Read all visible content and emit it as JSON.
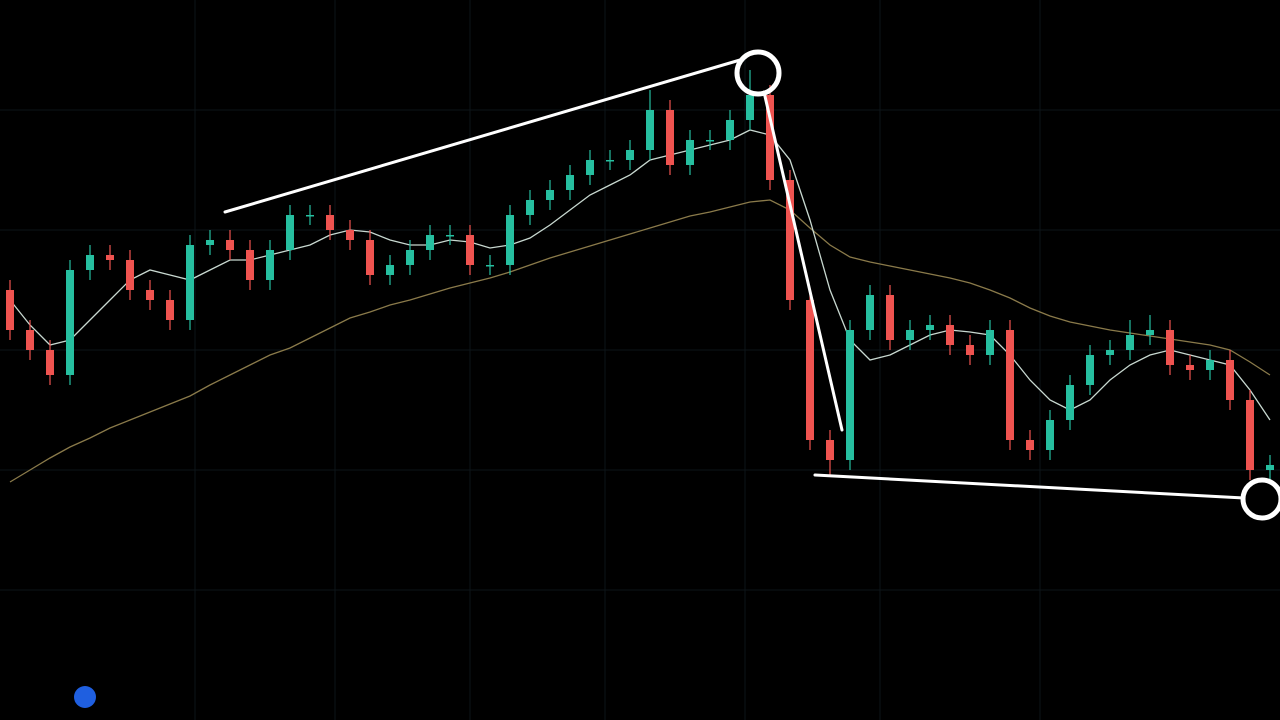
{
  "chart_data": {
    "type": "candlestick",
    "ylim": [
      0,
      720
    ],
    "up_color": "#26bfa0",
    "down_color": "#ef5350",
    "open": [
      430,
      390,
      370,
      345,
      450,
      465,
      460,
      430,
      420,
      400,
      475,
      480,
      470,
      440,
      470,
      505,
      505,
      490,
      480,
      445,
      455,
      470,
      485,
      485,
      455,
      455,
      505,
      520,
      530,
      545,
      560,
      560,
      570,
      610,
      555,
      580,
      580,
      600,
      625,
      540,
      420,
      280,
      260,
      390,
      425,
      380,
      390,
      395,
      375,
      365,
      390,
      280,
      270,
      300,
      335,
      365,
      370,
      385,
      390,
      355,
      350,
      360,
      320,
      250
    ],
    "high": [
      440,
      400,
      380,
      460,
      475,
      475,
      470,
      440,
      430,
      485,
      490,
      490,
      480,
      480,
      515,
      515,
      515,
      500,
      490,
      465,
      480,
      495,
      495,
      495,
      465,
      515,
      530,
      540,
      555,
      570,
      570,
      580,
      630,
      620,
      590,
      590,
      610,
      650,
      635,
      550,
      430,
      290,
      400,
      435,
      435,
      400,
      405,
      405,
      385,
      400,
      400,
      290,
      310,
      345,
      375,
      380,
      400,
      405,
      400,
      365,
      370,
      370,
      330,
      265
    ],
    "low": [
      380,
      360,
      335,
      335,
      440,
      450,
      420,
      410,
      390,
      390,
      465,
      460,
      430,
      430,
      460,
      495,
      480,
      470,
      435,
      435,
      445,
      460,
      475,
      445,
      445,
      445,
      495,
      510,
      520,
      535,
      550,
      550,
      560,
      545,
      545,
      570,
      570,
      590,
      530,
      410,
      270,
      245,
      250,
      380,
      370,
      370,
      380,
      365,
      355,
      355,
      270,
      260,
      260,
      290,
      325,
      355,
      360,
      375,
      345,
      340,
      340,
      310,
      240,
      240
    ],
    "close": [
      390,
      370,
      345,
      450,
      465,
      460,
      430,
      420,
      400,
      475,
      480,
      470,
      440,
      470,
      505,
      505,
      490,
      480,
      445,
      455,
      470,
      485,
      485,
      455,
      455,
      505,
      520,
      530,
      545,
      560,
      560,
      570,
      610,
      555,
      580,
      580,
      600,
      625,
      540,
      420,
      280,
      260,
      390,
      425,
      380,
      390,
      395,
      375,
      365,
      390,
      280,
      270,
      300,
      335,
      365,
      370,
      385,
      390,
      355,
      350,
      360,
      320,
      250,
      255
    ],
    "series": [
      {
        "color": "#8a7a4a",
        "values": [
          238,
          250,
          262,
          273,
          282,
          292,
          300,
          308,
          316,
          324,
          335,
          345,
          355,
          365,
          372,
          382,
          392,
          402,
          408,
          415,
          420,
          426,
          432,
          437,
          442,
          448,
          455,
          462,
          468,
          474,
          480,
          486,
          492,
          498,
          504,
          508,
          513,
          518,
          520,
          510,
          492,
          475,
          463,
          458,
          454,
          450,
          446,
          442,
          437,
          430,
          422,
          412,
          404,
          398,
          394,
          390,
          387,
          384,
          381,
          378,
          375,
          370,
          358,
          345
        ]
      },
      {
        "color": "#c8d8d0",
        "values": [
          420,
          395,
          375,
          380,
          400,
          420,
          440,
          450,
          445,
          440,
          450,
          460,
          460,
          465,
          470,
          475,
          485,
          490,
          488,
          480,
          475,
          475,
          480,
          478,
          472,
          475,
          482,
          495,
          510,
          525,
          535,
          545,
          560,
          565,
          570,
          575,
          580,
          590,
          585,
          560,
          500,
          430,
          380,
          360,
          365,
          375,
          385,
          390,
          388,
          385,
          365,
          340,
          320,
          310,
          320,
          340,
          355,
          365,
          370,
          365,
          360,
          355,
          330,
          300
        ]
      }
    ]
  }
}
